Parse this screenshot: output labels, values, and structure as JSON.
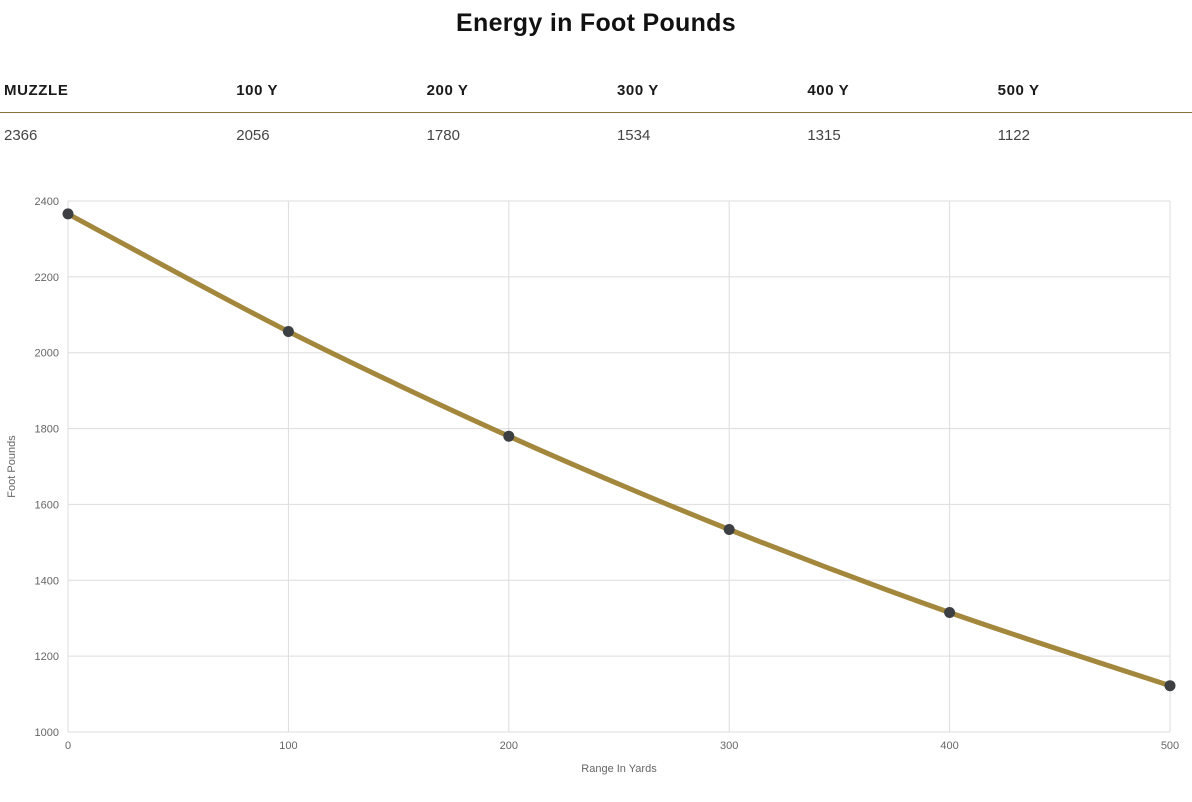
{
  "title": "Energy in Foot Pounds",
  "table": {
    "headers": [
      "MUZZLE",
      "100 Y",
      "200 Y",
      "300 Y",
      "400 Y",
      "500 Y"
    ],
    "values": [
      "2366",
      "2056",
      "1780",
      "1534",
      "1315",
      "1122"
    ]
  },
  "chart_data": {
    "type": "line",
    "title": "Energy in Foot Pounds",
    "x": [
      0,
      100,
      200,
      300,
      400,
      500
    ],
    "values": [
      2366,
      2056,
      1780,
      1534,
      1315,
      1122
    ],
    "xlabel": "Range In Yards",
    "ylabel": "Foot Pounds",
    "xlim": [
      0,
      500
    ],
    "ylim": [
      1000,
      2400
    ],
    "x_ticks": [
      0,
      100,
      200,
      300,
      400,
      500
    ],
    "y_ticks": [
      1000,
      1200,
      1400,
      1600,
      1800,
      2000,
      2200,
      2400
    ],
    "grid": true,
    "legend": "none",
    "line_color": "#a3873c",
    "point_color": "#3d4043",
    "grid_color": "#dddddd",
    "tick_color": "#666666"
  },
  "colors": {
    "title_text": "#111111",
    "divider": "#8a713a",
    "header_text": "#1a1a1a",
    "value_text": "#444444"
  }
}
